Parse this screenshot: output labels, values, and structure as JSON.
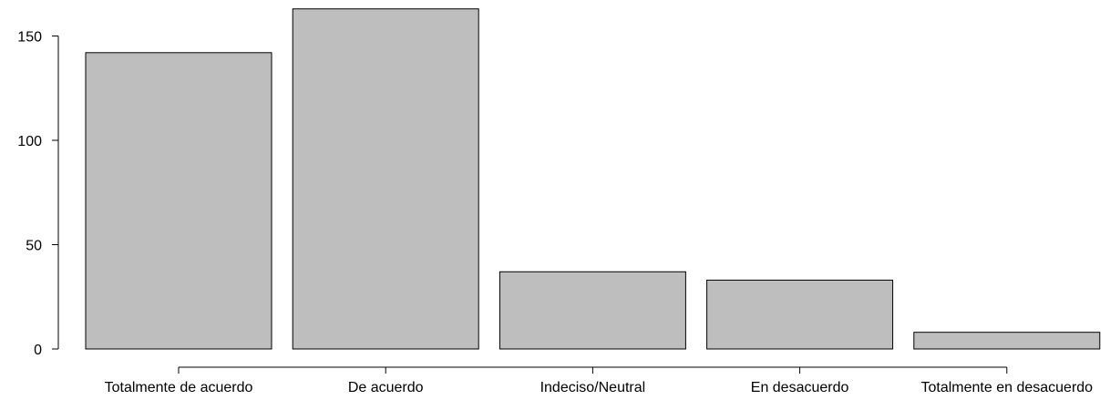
{
  "chart_data": {
    "type": "bar",
    "title": "",
    "xlabel": "",
    "ylabel": "",
    "categories": [
      "Totalmente de acuerdo",
      "De acuerdo",
      "Indeciso/Neutral",
      "En desacuerdo",
      "Totalmente en desacuerdo"
    ],
    "values": [
      142,
      163,
      37,
      33,
      8
    ],
    "ylim": [
      0,
      163
    ],
    "yticks": [
      0,
      50,
      100,
      150
    ],
    "grid": false,
    "legend": "none",
    "colors": {
      "bar_fill": "#bebebe",
      "bar_stroke": "#000000",
      "axis": "#000000"
    }
  }
}
